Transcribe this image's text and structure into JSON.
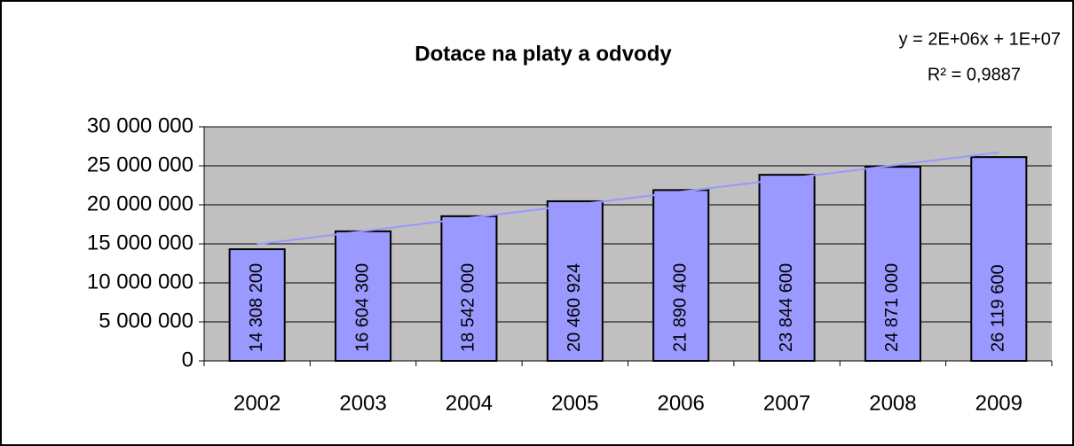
{
  "chart_data": {
    "type": "bar",
    "title": "Dotace na platy a odvody",
    "trendline_equation": "y = 2E+06x + 1E+07",
    "trendline_r2": "R² = 0,9887",
    "trendline_color": "#9999ff",
    "categories": [
      "2002",
      "2003",
      "2004",
      "2005",
      "2006",
      "2007",
      "2008",
      "2009"
    ],
    "values": [
      14308200,
      16604300,
      18542000,
      20460924,
      21890400,
      23844600,
      24871000,
      26119600
    ],
    "value_labels": [
      "14 308 200",
      "16 604 300",
      "18 542 000",
      "20 460 924",
      "21 890 400",
      "23 844 600",
      "24 871 000",
      "26 119 600"
    ],
    "color": "#9999ff",
    "ylim": [
      0,
      30000000
    ],
    "yticks": [
      0,
      {
        "value": 5000000,
        "label": "5 000 000"
      },
      {
        "value": 10000000,
        "label": "10 000 000"
      },
      {
        "value": 15000000,
        "label": "15 000 000"
      },
      {
        "value": 20000000,
        "label": "20 000 000"
      },
      {
        "value": 25000000,
        "label": "25 000 000"
      },
      {
        "value": 30000000,
        "label": "30 000 000"
      }
    ],
    "grid": true
  }
}
